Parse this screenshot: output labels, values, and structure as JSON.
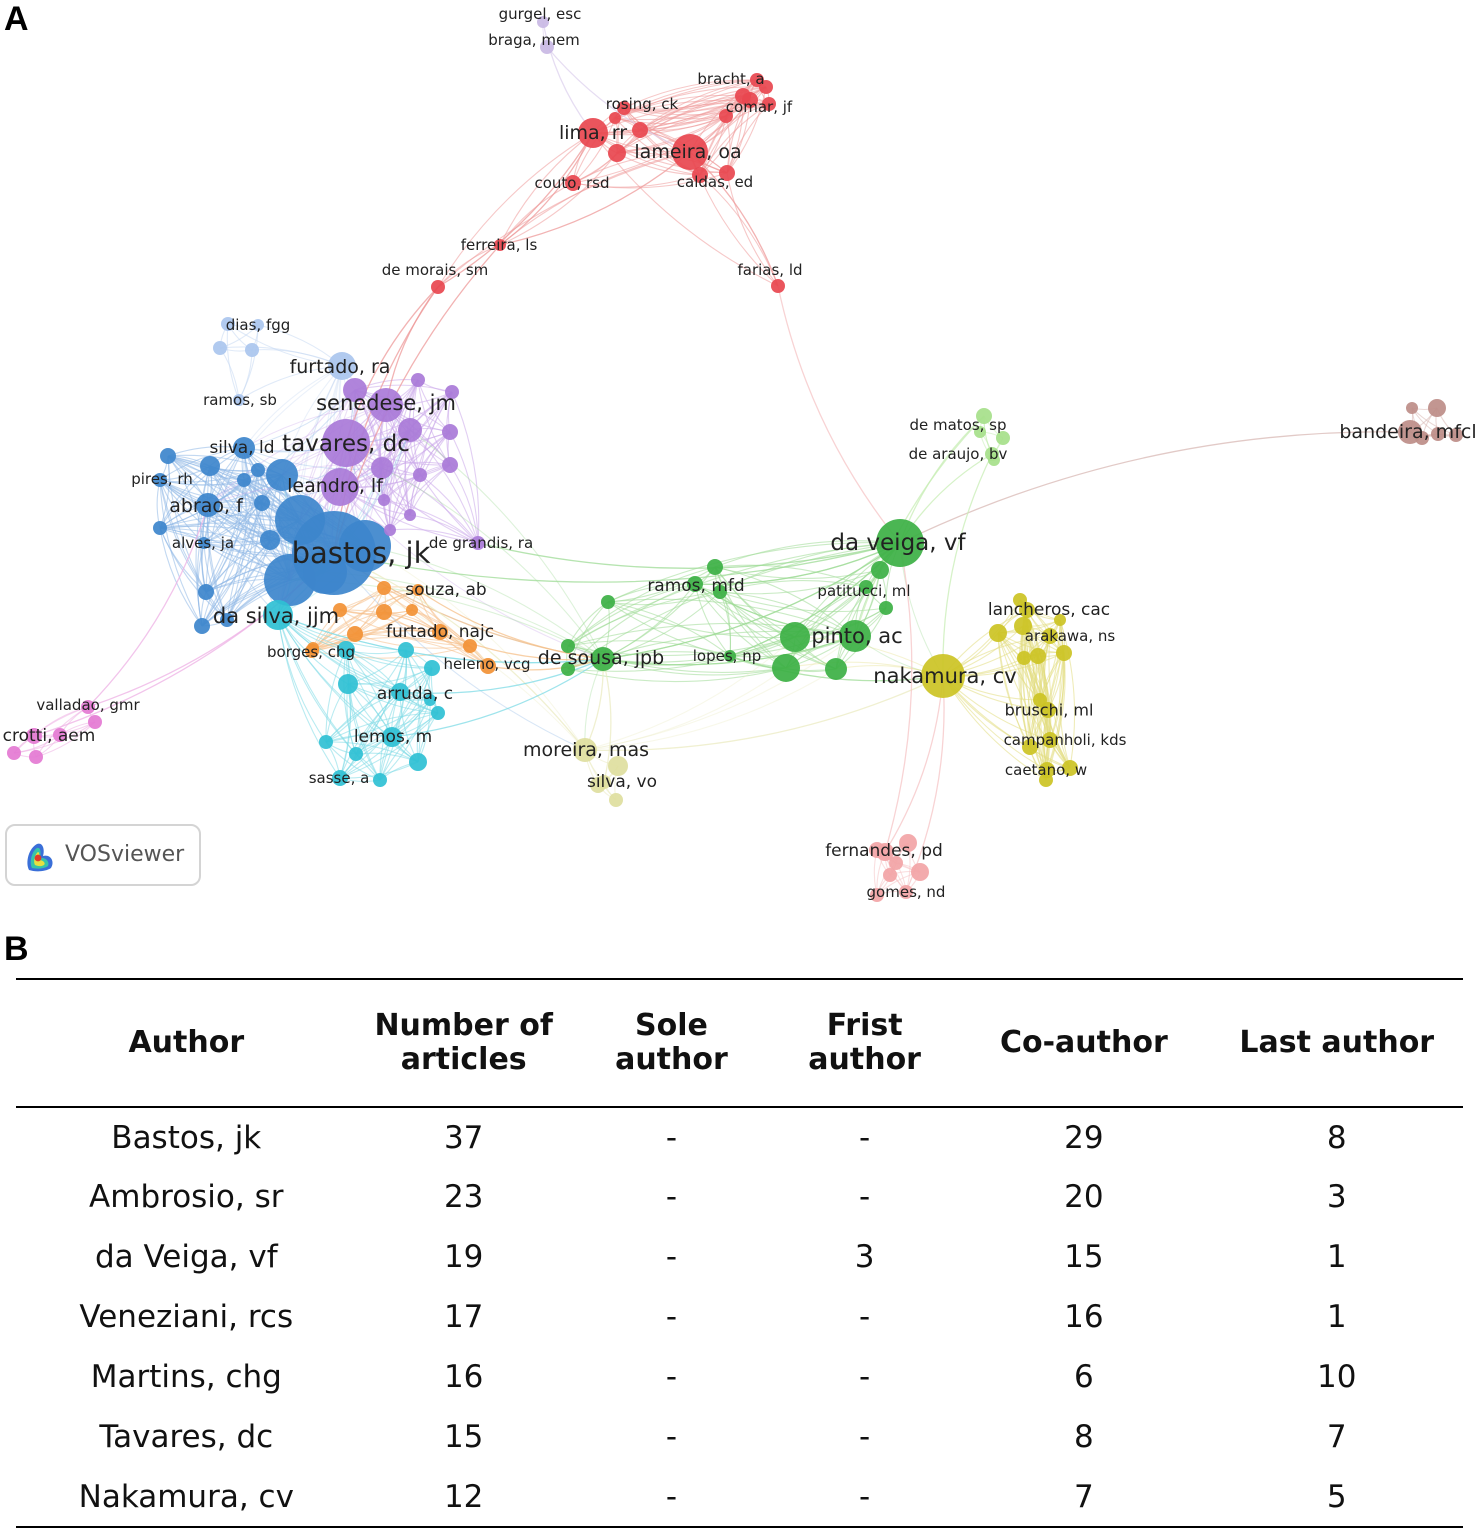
{
  "panel_a": {
    "letter": "A",
    "badge": {
      "logo_icon": "vosviewer-logo-icon",
      "text": "VOSviewer"
    },
    "clusters": {
      "red": "#e8474f",
      "green": "#3cb044",
      "blue": "#3d86cc",
      "purple": "#a97ad8",
      "cyan": "#2fc0d4",
      "yellow": "#ccc324",
      "orange": "#f29135",
      "lightblue": "#aac6ee",
      "lightgreen": "#a6e08a",
      "lightyellow": "#dede9e",
      "lavender": "#c9b8e4",
      "pink": "#e47ad2",
      "salmon": "#f2a4a6",
      "brown": "#bd8d88"
    },
    "labels": [
      "gurgel, esc",
      "braga, mem",
      "bracht, a",
      "rosing, ck",
      "comar, jf",
      "lima, rr",
      "lameira, oa",
      "couto, rsd",
      "caldas, ed",
      "ferreira, ls",
      "de morais, sm",
      "farias, ld",
      "dias, fgg",
      "furtado, ra",
      "ramos, sb",
      "senedese, jm",
      "silva, ld",
      "tavares, dc",
      "pires, rh",
      "leandro, lf",
      "abrao, f",
      "alves, ja",
      "bastos, jk",
      "de grandis, ra",
      "souza, ab",
      "da silva, jjm",
      "furtado, najc",
      "borges, chg",
      "heleno, vcg",
      "de sousa, jpb",
      "ramos, mfd",
      "lopes, np",
      "arruda, c",
      "valladao, gmr",
      "crotti, aem",
      "lemos, m",
      "sasse, a",
      "moreira, mas",
      "silva, vo",
      "de matos, sp",
      "de araujo, bv",
      "bandeira, mfcl",
      "da veiga, vf",
      "patitucci, ml",
      "lancheros, cac",
      "pinto, ac",
      "arakawa, ns",
      "nakamura, cv",
      "bruschi, ml",
      "campanholi, kds",
      "caetano, w",
      "fernandes, pd",
      "gomes, nd"
    ]
  },
  "panel_b": {
    "letter": "B",
    "headers": {
      "author": "Author",
      "articles_1": "Number of",
      "articles_2": "articles",
      "sole": "Sole author",
      "first_1": "Frist",
      "first_2": "author",
      "coauthor": "Co-author",
      "last": "Last author"
    },
    "rows": [
      {
        "author": "Bastos, jk",
        "articles": "37",
        "sole": "-",
        "first": "-",
        "coauthor": "29",
        "last": "8"
      },
      {
        "author": "Ambrosio, sr",
        "articles": "23",
        "sole": "-",
        "first": "-",
        "coauthor": "20",
        "last": "3"
      },
      {
        "author": "da Veiga, vf",
        "articles": "19",
        "sole": "-",
        "first": "3",
        "coauthor": "15",
        "last": "1"
      },
      {
        "author": "Veneziani, rcs",
        "articles": "17",
        "sole": "-",
        "first": "-",
        "coauthor": "16",
        "last": "1"
      },
      {
        "author": "Martins, chg",
        "articles": "16",
        "sole": "-",
        "first": "-",
        "coauthor": "6",
        "last": "10"
      },
      {
        "author": "Tavares, dc",
        "articles": "15",
        "sole": "-",
        "first": "-",
        "coauthor": "8",
        "last": "7"
      },
      {
        "author": "Nakamura, cv",
        "articles": "12",
        "sole": "-",
        "first": "-",
        "coauthor": "7",
        "last": "5"
      }
    ]
  }
}
